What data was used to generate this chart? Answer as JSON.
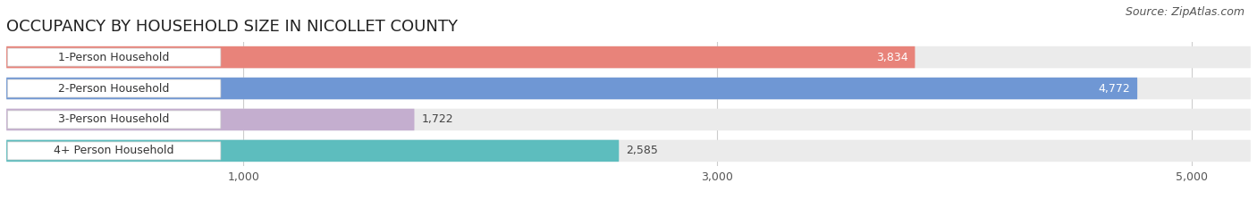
{
  "title": "OCCUPANCY BY HOUSEHOLD SIZE IN NICOLLET COUNTY",
  "source": "Source: ZipAtlas.com",
  "categories": [
    "1-Person Household",
    "2-Person Household",
    "3-Person Household",
    "4+ Person Household"
  ],
  "values": [
    3834,
    4772,
    1722,
    2585
  ],
  "bar_colors": [
    "#E8837A",
    "#6F97D4",
    "#C4AECF",
    "#5DBDBE"
  ],
  "bar_bg_color": "#EBEBEB",
  "xlim_max": 5250,
  "xticks": [
    1000,
    3000,
    5000
  ],
  "title_fontsize": 13,
  "source_fontsize": 9,
  "label_fontsize": 9,
  "value_fontsize": 9,
  "background_color": "#FFFFFF",
  "grid_color": "#CCCCCC",
  "value_inside_threshold": 0.72
}
